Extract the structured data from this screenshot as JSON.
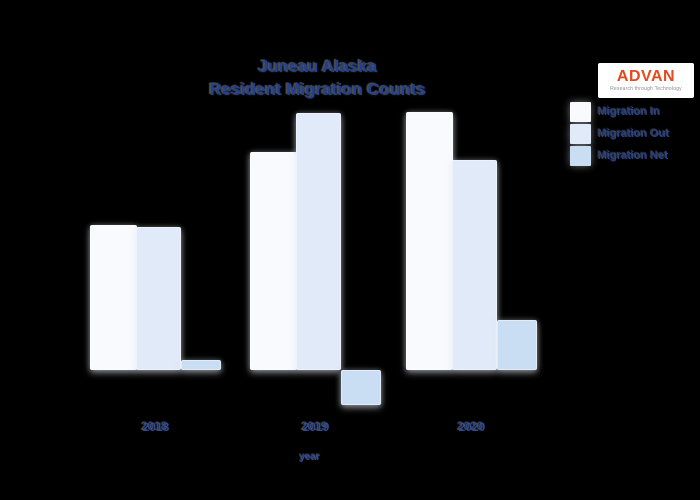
{
  "canvas": {
    "background": "#000000"
  },
  "header": {
    "title_line1": "Juneau Alaska",
    "title_line2": "Resident Migration Counts",
    "title_color": "#24418f"
  },
  "logo": {
    "brand": "ADVAN",
    "tagline": "Research through Technology",
    "brand_color": "#e5491c",
    "background": "#ffffff"
  },
  "chart_data": {
    "type": "bar",
    "title": "Juneau Alaska Resident Migration Counts",
    "categories": [
      "2018",
      "2019",
      "2020"
    ],
    "series": [
      {
        "name": "Migration In",
        "color": "#f8fafd",
        "values": [
          145,
          218,
          258
        ]
      },
      {
        "name": "Migration Out",
        "color": "#e0eaf8",
        "values": [
          143,
          257,
          210
        ]
      },
      {
        "name": "Migration Net",
        "color": "#c9ddf3",
        "values": [
          10,
          -35,
          50
        ]
      }
    ],
    "xlabel": "year",
    "ylabel": "",
    "units": "relative (chart displays no y-axis scale)",
    "y_axis_visible": false,
    "gridlines": false,
    "legend_position": "top-right",
    "ylim": [
      -40,
      280
    ]
  }
}
